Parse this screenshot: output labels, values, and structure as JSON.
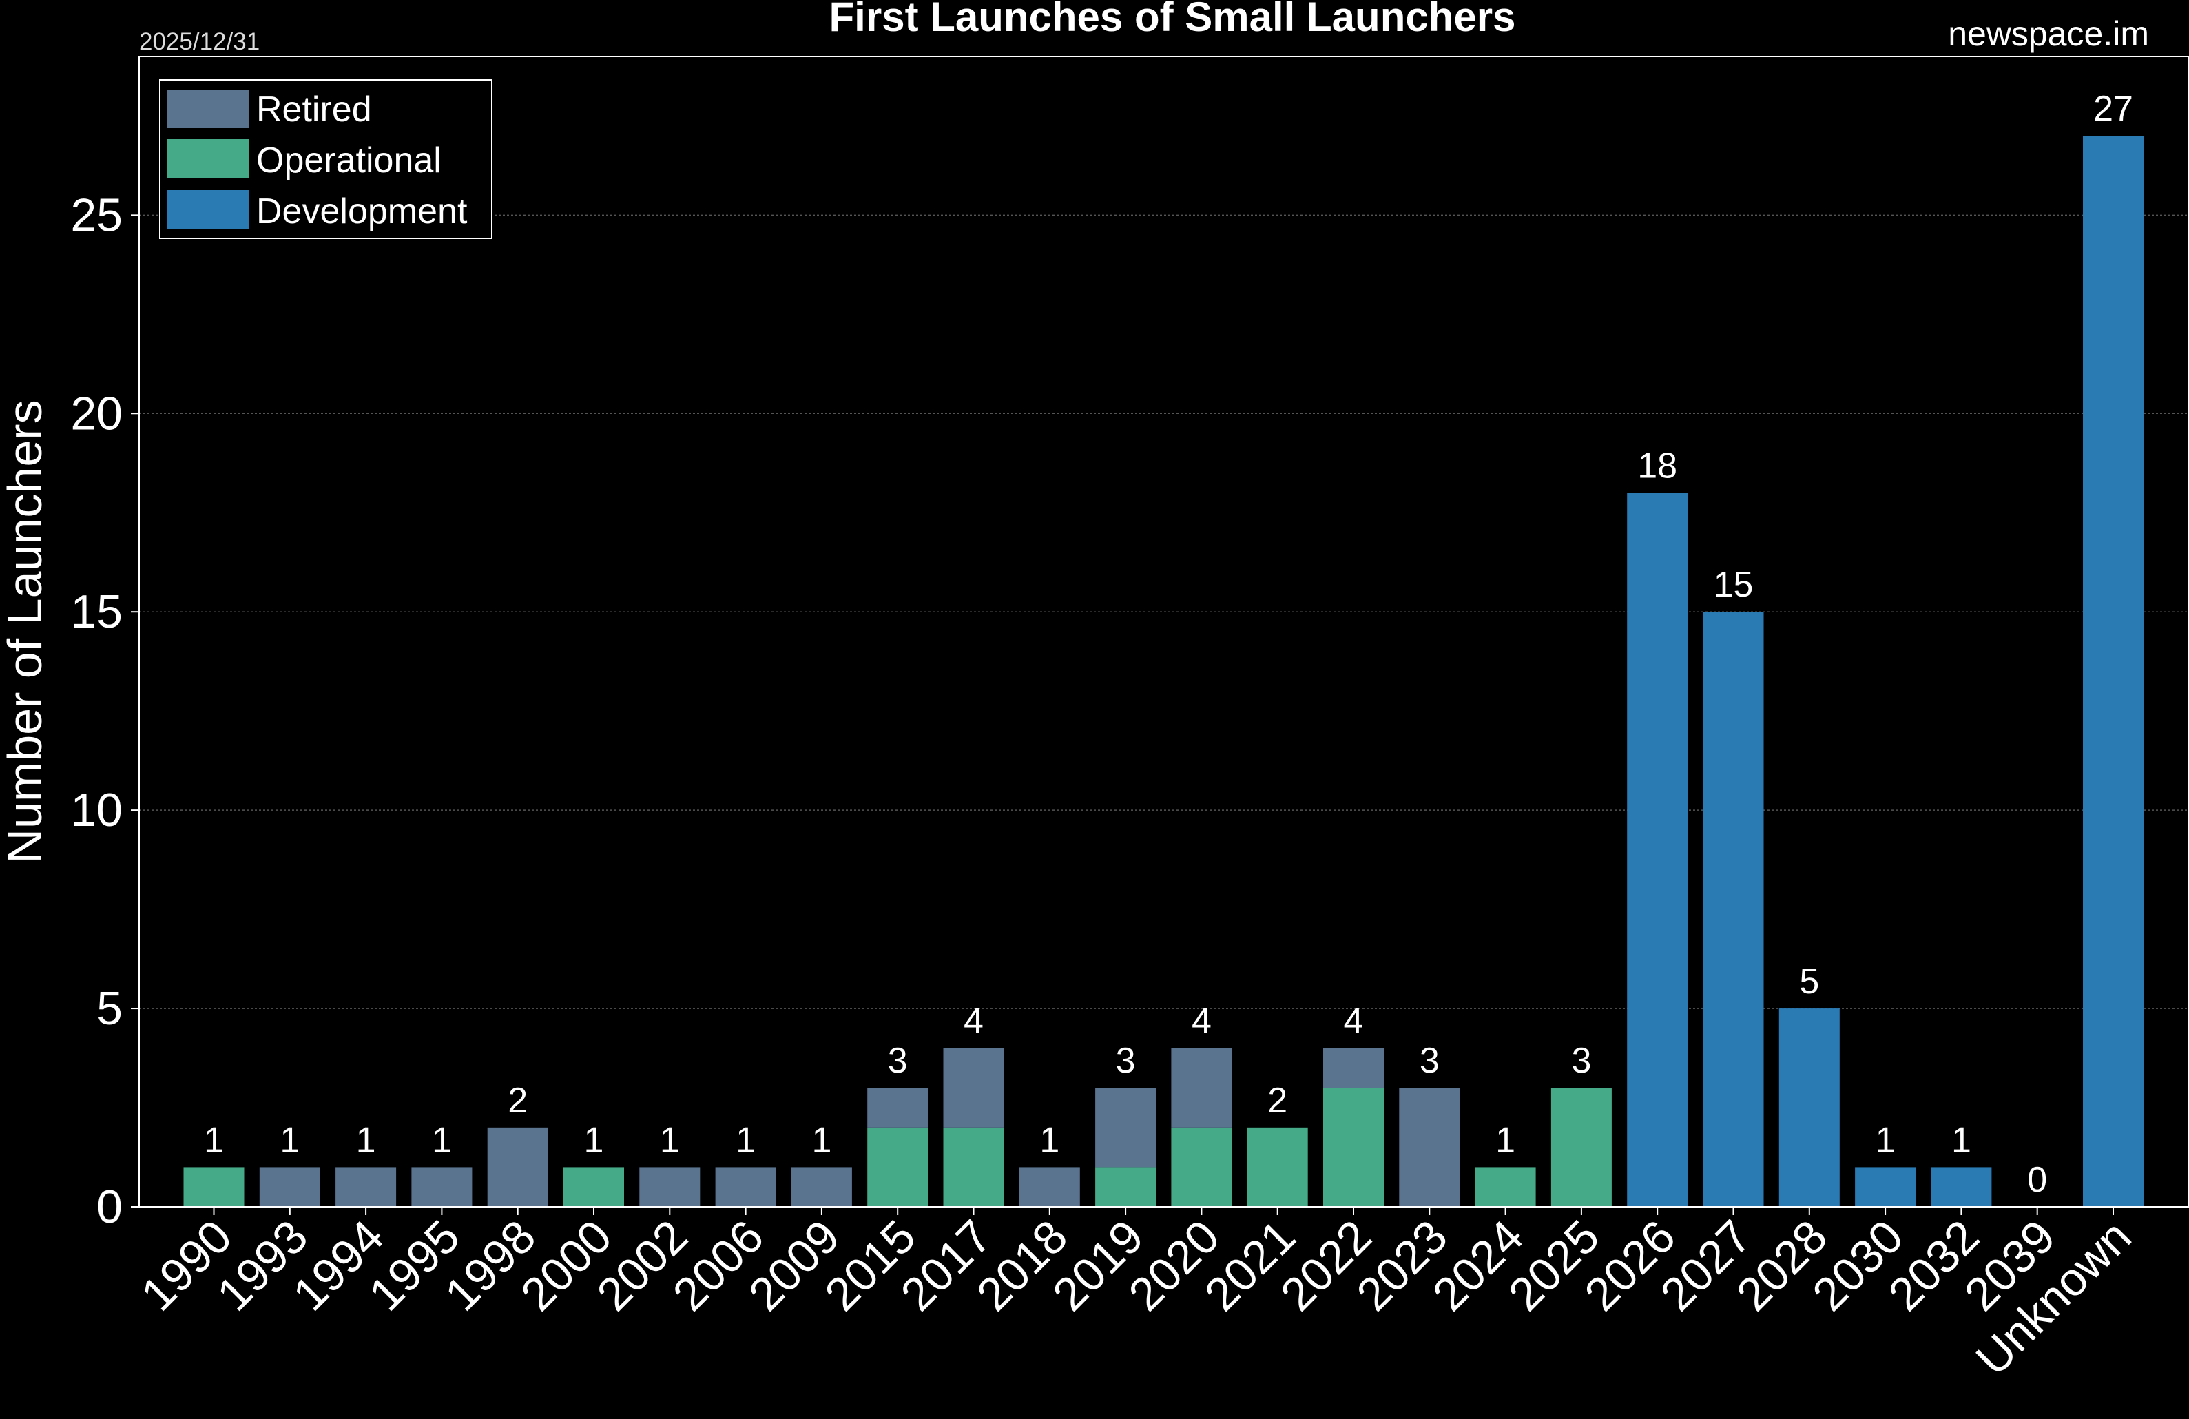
{
  "header": {
    "date": "2025/12/31",
    "source": "newspace.im"
  },
  "chart_data": {
    "type": "bar",
    "stacked": true,
    "title": "First Launches of Small Launchers",
    "xlabel": "",
    "ylabel": "Number of Launchers",
    "ylim": [
      0,
      29
    ],
    "yticks": [
      0,
      5,
      10,
      15,
      20,
      25
    ],
    "grid": true,
    "legend_position": "top-left",
    "categories": [
      "1990",
      "1993",
      "1994",
      "1995",
      "1998",
      "2000",
      "2002",
      "2006",
      "2009",
      "2015",
      "2017",
      "2018",
      "2019",
      "2020",
      "2021",
      "2022",
      "2023",
      "2024",
      "2025",
      "2026",
      "2027",
      "2028",
      "2030",
      "2032",
      "2039",
      "Unknown"
    ],
    "series": [
      {
        "name": "Operational",
        "color": "#44aa88",
        "values": [
          1,
          0,
          0,
          0,
          0,
          1,
          0,
          0,
          0,
          2,
          2,
          0,
          1,
          2,
          2,
          3,
          0,
          1,
          3,
          0,
          0,
          0,
          0,
          0,
          0,
          0
        ]
      },
      {
        "name": "Retired",
        "color": "#5a7490",
        "values": [
          0,
          1,
          1,
          1,
          2,
          0,
          1,
          1,
          1,
          1,
          2,
          1,
          2,
          2,
          0,
          1,
          3,
          0,
          0,
          0,
          0,
          0,
          0,
          0,
          0,
          0
        ]
      },
      {
        "name": "Development",
        "color": "#2a7ab4",
        "values": [
          0,
          0,
          0,
          0,
          0,
          0,
          0,
          0,
          0,
          0,
          0,
          0,
          0,
          0,
          0,
          0,
          0,
          0,
          0,
          18,
          15,
          5,
          1,
          1,
          0,
          27
        ]
      }
    ],
    "legend_order": [
      "Retired",
      "Operational",
      "Development"
    ],
    "totals": [
      "1",
      "1",
      "1",
      "1",
      "2",
      "1",
      "1",
      "1",
      "1",
      "3",
      "4",
      "1",
      "3",
      "4",
      "2",
      "4",
      "3",
      "1",
      "3",
      "18",
      "15",
      "5",
      "1",
      "1",
      "0",
      "27"
    ]
  }
}
